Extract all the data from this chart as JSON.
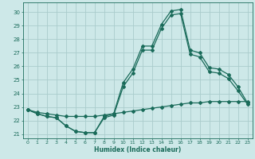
{
  "xlabel": "Humidex (Indice chaleur)",
  "ylabel": "",
  "background_color": "#cde8e8",
  "grid_color": "#aacccc",
  "line_color": "#1a6b5a",
  "xlim": [
    -0.5,
    23.5
  ],
  "ylim": [
    20.7,
    30.7
  ],
  "xticks": [
    0,
    1,
    2,
    3,
    4,
    5,
    6,
    7,
    8,
    9,
    10,
    11,
    12,
    13,
    14,
    15,
    16,
    17,
    18,
    19,
    20,
    21,
    22,
    23
  ],
  "yticks": [
    21,
    22,
    23,
    24,
    25,
    26,
    27,
    28,
    29,
    30
  ],
  "line1_x": [
    0,
    1,
    2,
    3,
    4,
    5,
    6,
    7,
    8,
    9,
    10,
    11,
    12,
    13,
    14,
    15,
    16,
    17,
    18,
    19,
    20,
    21,
    22,
    23
  ],
  "line1_y": [
    22.8,
    22.6,
    22.5,
    22.4,
    22.3,
    22.3,
    22.3,
    22.3,
    22.4,
    22.5,
    22.6,
    22.7,
    22.8,
    22.9,
    23.0,
    23.1,
    23.2,
    23.3,
    23.3,
    23.4,
    23.4,
    23.4,
    23.4,
    23.4
  ],
  "line2_x": [
    0,
    1,
    2,
    3,
    4,
    5,
    6,
    7,
    8,
    9,
    10,
    11,
    12,
    13,
    14,
    15,
    16,
    17,
    18,
    19,
    20,
    21,
    22,
    23
  ],
  "line2_y": [
    22.8,
    22.5,
    22.3,
    22.2,
    21.6,
    21.2,
    21.1,
    21.1,
    22.3,
    22.5,
    24.8,
    25.8,
    27.5,
    27.5,
    29.1,
    30.1,
    30.2,
    27.2,
    27.0,
    25.9,
    25.8,
    25.4,
    24.5,
    23.3
  ],
  "line3_x": [
    0,
    1,
    2,
    3,
    4,
    5,
    6,
    7,
    8,
    9,
    10,
    11,
    12,
    13,
    14,
    15,
    16,
    17,
    18,
    19,
    20,
    21,
    22,
    23
  ],
  "line3_y": [
    22.8,
    22.5,
    22.3,
    22.2,
    21.6,
    21.2,
    21.1,
    21.1,
    22.2,
    22.4,
    24.5,
    25.5,
    27.2,
    27.2,
    28.8,
    29.8,
    29.9,
    26.9,
    26.7,
    25.6,
    25.5,
    25.1,
    24.2,
    23.2
  ]
}
